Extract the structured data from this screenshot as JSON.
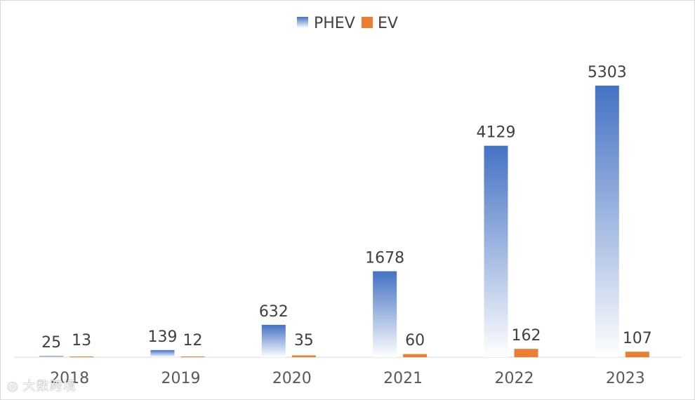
{
  "chart_data": {
    "type": "bar",
    "title": "",
    "xlabel": "",
    "ylabel": "",
    "categories": [
      "2018",
      "2019",
      "2020",
      "2021",
      "2022",
      "2023"
    ],
    "series": [
      {
        "name": "PHEV",
        "values": [
          25,
          139,
          632,
          1678,
          4129,
          5303
        ],
        "color_top": "#4472C4",
        "color_bottom": "#FFFFFF"
      },
      {
        "name": "EV",
        "values": [
          13,
          12,
          35,
          60,
          162,
          107
        ],
        "color": "#ED7D31"
      }
    ],
    "ylim": [
      0,
      5303
    ],
    "grid": false,
    "legend_position": "top-center",
    "data_labels": true
  },
  "watermark": {
    "text": "大数跨境",
    "icon": "logo-mark-icon"
  }
}
